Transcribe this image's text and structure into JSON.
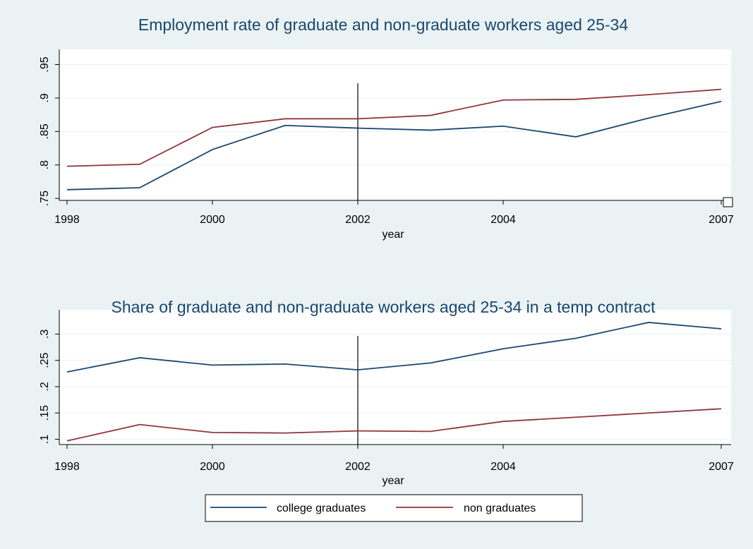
{
  "chart_data": [
    {
      "type": "line",
      "title": "Employment rate of graduate and non-graduate workers aged 25-34",
      "xlabel": "year",
      "ylabel": "",
      "x": [
        1998,
        1999,
        2000,
        2001,
        2002,
        2003,
        2004,
        2005,
        2006,
        2007
      ],
      "xticks": [
        1998,
        2000,
        2002,
        2004,
        2007
      ],
      "xlim": [
        1998,
        2007
      ],
      "yticks": [
        0.75,
        0.8,
        0.85,
        0.9,
        0.95
      ],
      "ytick_labels": [
        ".75",
        ".8",
        ".85",
        ".9",
        ".95"
      ],
      "ylim": [
        0.747,
        0.96
      ],
      "vline": 2002,
      "grid": true,
      "series": [
        {
          "name": "college graduates",
          "color": "#1a476f",
          "values": [
            0.763,
            0.766,
            0.823,
            0.859,
            0.855,
            0.852,
            0.858,
            0.842,
            0.87,
            0.895
          ]
        },
        {
          "name": "non graduates",
          "color": "#90353b",
          "values": [
            0.798,
            0.801,
            0.856,
            0.869,
            0.869,
            0.874,
            0.897,
            0.898,
            0.905,
            0.913
          ]
        }
      ]
    },
    {
      "type": "line",
      "title": "Share of graduate and non-graduate workers aged 25-34 in a temp contract",
      "xlabel": "year",
      "ylabel": "",
      "x": [
        1998,
        1999,
        2000,
        2001,
        2002,
        2003,
        2004,
        2005,
        2006,
        2007
      ],
      "xticks": [
        1998,
        2000,
        2002,
        2004,
        2007
      ],
      "xlim": [
        1998,
        2007
      ],
      "yticks": [
        0.1,
        0.15,
        0.2,
        0.25,
        0.3
      ],
      "ytick_labels": [
        ".1",
        ".15",
        ".2",
        ".25",
        ".3"
      ],
      "ylim": [
        0.09,
        0.33
      ],
      "vline": 2002,
      "grid": true,
      "series": [
        {
          "name": "college graduates",
          "color": "#1a476f",
          "values": [
            0.228,
            0.255,
            0.241,
            0.243,
            0.232,
            0.245,
            0.272,
            0.292,
            0.322,
            0.31
          ]
        },
        {
          "name": "non graduates",
          "color": "#90353b",
          "values": [
            0.097,
            0.128,
            0.113,
            0.112,
            0.116,
            0.115,
            0.134,
            0.142,
            0.15,
            0.158
          ]
        }
      ]
    }
  ],
  "legend": {
    "placement": "bottom",
    "items": [
      {
        "label": "college graduates",
        "color": "#1a476f"
      },
      {
        "label": "non graduates",
        "color": "#90353b"
      }
    ]
  }
}
